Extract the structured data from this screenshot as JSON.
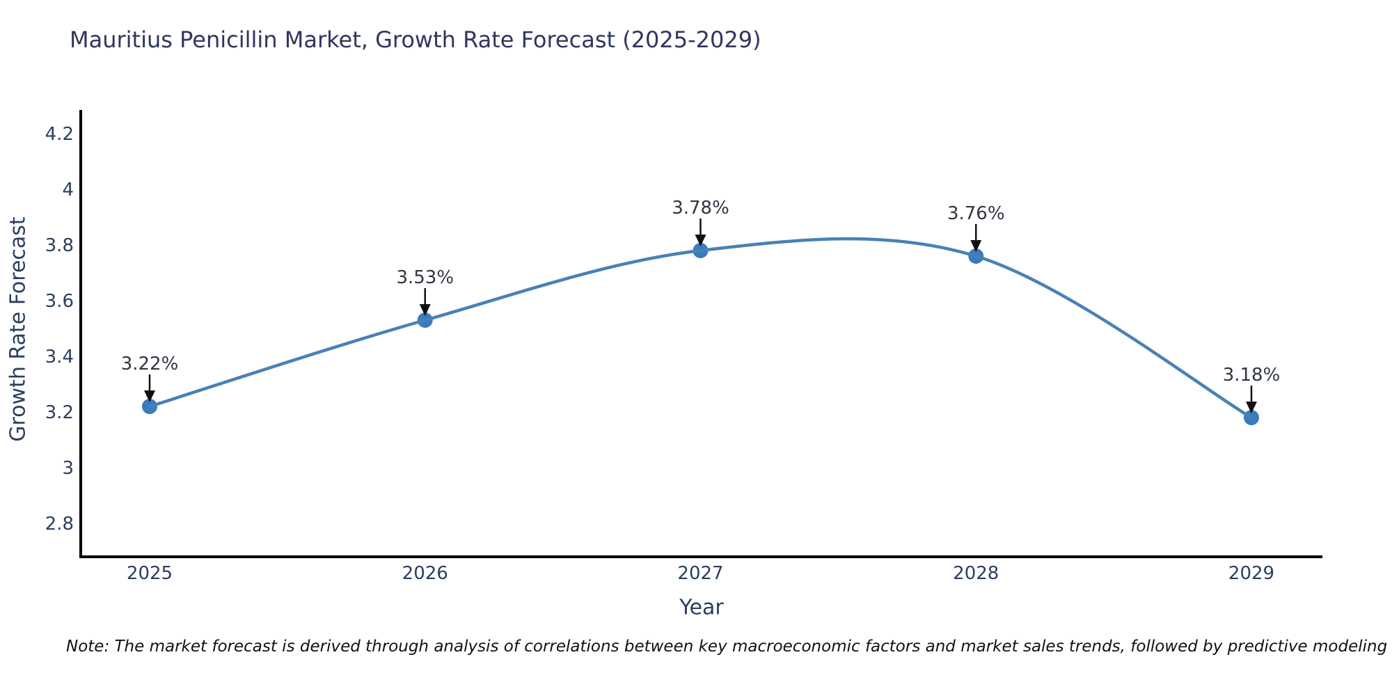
{
  "page": {
    "note": "Note: The market forecast is derived through analysis of correlations between key macroeconomic factors and market sales trends, followed by predictive modeling to project future sales"
  },
  "chart_data": {
    "type": "line",
    "title": "Mauritius Penicillin Market, Growth Rate Forecast (2025-2029)",
    "xlabel": "Year",
    "ylabel": "Growth Rate Forecast",
    "categories": [
      "2025",
      "2026",
      "2027",
      "2028",
      "2029"
    ],
    "series": [
      {
        "name": "Growth Rate Forecast",
        "values": [
          3.22,
          3.53,
          3.78,
          3.76,
          3.18
        ],
        "point_labels": [
          "3.22%",
          "3.53%",
          "3.78%",
          "3.76%",
          "3.18%"
        ]
      }
    ],
    "line_shape": "spline",
    "markers": true,
    "grid": false,
    "legend_position": "none",
    "ylim": [
      2.68,
      4.28
    ],
    "yticks": [
      {
        "value": 2.8,
        "label": "2.8"
      },
      {
        "value": 3.0,
        "label": "3"
      },
      {
        "value": 3.2,
        "label": "3.2"
      },
      {
        "value": 3.4,
        "label": "3.4"
      },
      {
        "value": 3.6,
        "label": "3.6"
      },
      {
        "value": 3.8,
        "label": "3.8"
      },
      {
        "value": 4.0,
        "label": "4"
      },
      {
        "value": 4.2,
        "label": "4.2"
      }
    ],
    "colors": {
      "line": "#4781b6",
      "marker": "#3c7abf",
      "axis_line": "#000000",
      "tick_text": "#2a3f5f",
      "axis_title_text": "#2a3f5f",
      "title_text": "#2f365f",
      "annotation_text": "#2f3640",
      "annotation_arrow": "#111111",
      "background": "#ffffff"
    }
  }
}
